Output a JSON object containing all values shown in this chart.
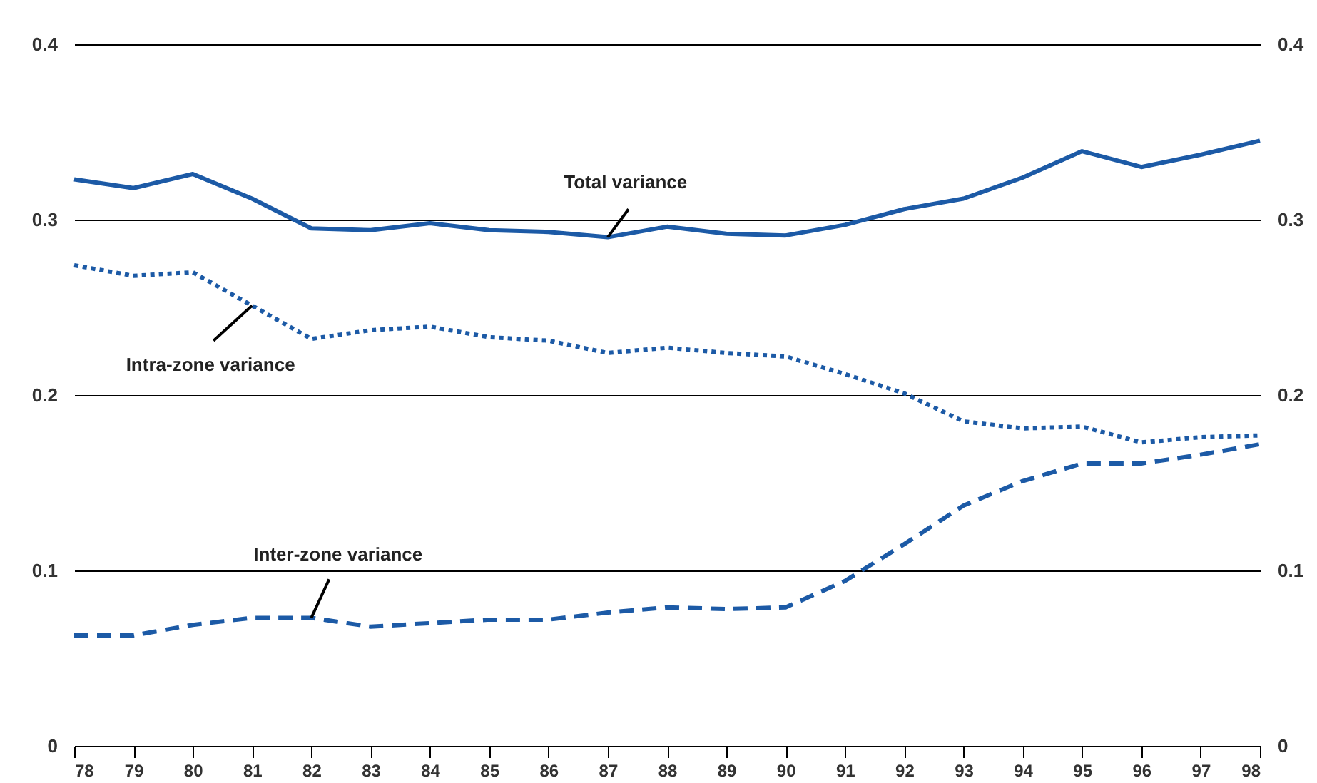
{
  "chart_data": {
    "type": "line",
    "categories": [
      "78",
      "79",
      "80",
      "81",
      "82",
      "83",
      "84",
      "85",
      "86",
      "87",
      "88",
      "89",
      "90",
      "91",
      "92",
      "93",
      "94",
      "95",
      "96",
      "97",
      "98"
    ],
    "series": [
      {
        "color": "#1c5aa6",
        "line_style": "solid",
        "values": [
          0.323,
          0.318,
          0.326,
          0.312,
          0.295,
          0.294,
          0.298,
          0.294,
          0.293,
          0.29,
          0.296,
          0.292,
          0.291,
          0.297,
          0.306,
          0.312,
          0.324,
          0.339,
          0.33,
          0.337,
          0.345
        ]
      },
      {
        "color": "#1c5aa6",
        "line_style": "dotted",
        "values": [
          0.274,
          0.268,
          0.27,
          0.251,
          0.232,
          0.237,
          0.239,
          0.233,
          0.231,
          0.224,
          0.227,
          0.224,
          0.222,
          0.212,
          0.201,
          0.185,
          0.181,
          0.182,
          0.173,
          0.176,
          0.177
        ]
      },
      {
        "color": "#1c5aa6",
        "line_style": "dashed",
        "values": [
          0.063,
          0.063,
          0.069,
          0.073,
          0.073,
          0.068,
          0.07,
          0.072,
          0.072,
          0.076,
          0.079,
          0.078,
          0.079,
          0.094,
          0.115,
          0.137,
          0.151,
          0.161,
          0.161,
          0.166,
          0.172
        ]
      }
    ],
    "ylim": [
      0,
      0.4
    ],
    "yticks": [
      0,
      0.1,
      0.2,
      0.3,
      0.4
    ],
    "y2lim": [
      0,
      0.4
    ],
    "y2ticks": [
      0,
      0.1,
      0.2,
      0.3,
      0.4
    ],
    "grid": "y",
    "legend": false,
    "marker": "none",
    "annotations": [
      {
        "text": "Total variance",
        "x": "87",
        "y": 0.29
      },
      {
        "text": "Intra-zone variance",
        "x": "81",
        "y": 0.251
      },
      {
        "text": "Inter-zone variance",
        "x": "82",
        "y": 0.073
      }
    ]
  }
}
